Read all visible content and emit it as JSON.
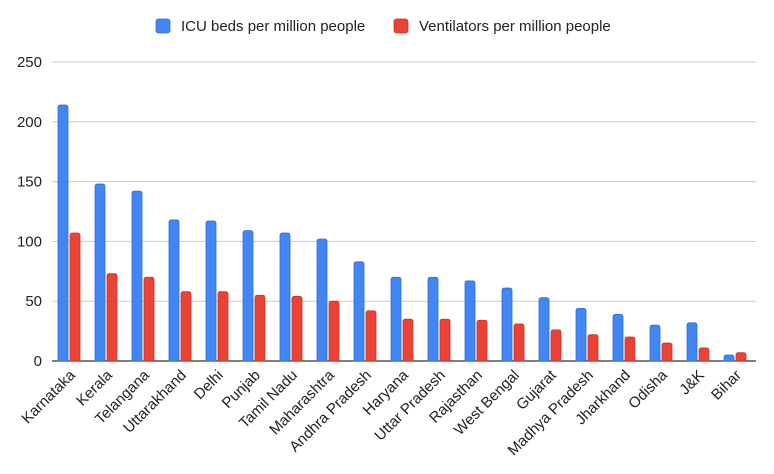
{
  "chart_data": {
    "type": "bar",
    "title": "",
    "xlabel": "",
    "ylabel": "",
    "ylim": [
      0,
      250
    ],
    "yticks": [
      0,
      50,
      100,
      150,
      200,
      250
    ],
    "grid": true,
    "legend_position": "top-center",
    "categories": [
      "Karnataka",
      "Kerala",
      "Telangana",
      "Uttarakhand",
      "Delhi",
      "Punjab",
      "Tamil Nadu",
      "Maharashtra",
      "Andhra Pradesh",
      "Haryana",
      "Uttar Pradesh",
      "Rajasthan",
      "West Bengal",
      "Gujarat",
      "Madhya Pradesh",
      "Jharkhand",
      "Odisha",
      "J&K",
      "Bihar"
    ],
    "series": [
      {
        "name": "ICU beds per million people",
        "color": "#4285f4",
        "values": [
          214,
          148,
          142,
          118,
          117,
          109,
          107,
          102,
          83,
          70,
          70,
          67,
          61,
          53,
          44,
          39,
          30,
          32,
          5
        ]
      },
      {
        "name": "Ventilators per million people",
        "color": "#ea4335",
        "values": [
          107,
          73,
          70,
          58,
          58,
          55,
          54,
          50,
          42,
          35,
          35,
          34,
          31,
          26,
          22,
          20,
          15,
          11,
          7
        ]
      }
    ]
  }
}
